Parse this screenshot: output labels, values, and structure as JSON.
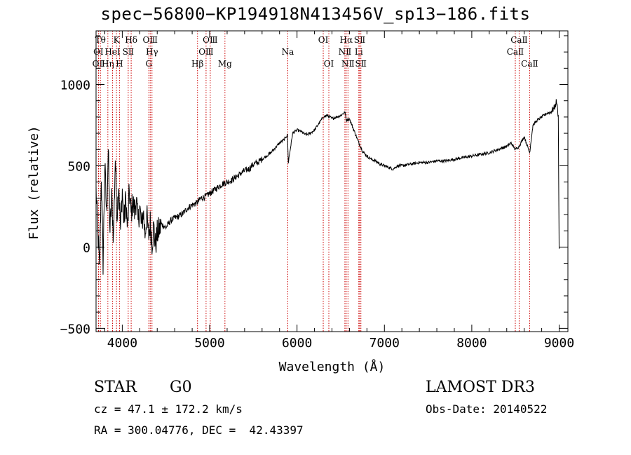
{
  "chart_data": {
    "type": "line",
    "title": "spec−56800−KP194918N413456V_sp13−186.fits",
    "xlabel": "Wavelength (Å)",
    "ylabel": "Flux (relative)",
    "xlim": [
      3700,
      9100
    ],
    "ylim": [
      -520,
      1330
    ],
    "xticks": [
      4000,
      5000,
      6000,
      7000,
      8000,
      9000
    ],
    "yticks": [
      -500,
      0,
      500,
      1000
    ],
    "xtick_labels": [
      "4000",
      "5000",
      "6000",
      "7000",
      "8000",
      "9000"
    ],
    "ytick_labels": [
      "−500",
      "0",
      "500",
      "1000"
    ],
    "grid": false,
    "line_color": "#000000",
    "marker_color": "#cc0000",
    "series": [
      {
        "x": [
          3700,
          3720,
          3740,
          3760,
          3780,
          3800,
          3820,
          3840,
          3860,
          3880,
          3900,
          3920,
          3940,
          3960,
          3980,
          4000,
          4020,
          4040,
          4060,
          4080,
          4100,
          4120,
          4140,
          4160,
          4180,
          4200,
          4220,
          4240,
          4260,
          4280,
          4300,
          4320,
          4340,
          4360,
          4380,
          4400,
          4450,
          4500,
          4550,
          4600,
          4650,
          4700,
          4750,
          4800,
          4850,
          4900,
          4950,
          5000,
          5050,
          5100,
          5150,
          5200,
          5250,
          5300,
          5350,
          5400,
          5450,
          5500,
          5550,
          5600,
          5650,
          5700,
          5750,
          5800,
          5850,
          5890,
          5900,
          5950,
          6000,
          6050,
          6100,
          6150,
          6200,
          6250,
          6300,
          6350,
          6400,
          6450,
          6500,
          6550,
          6563,
          6600,
          6650,
          6700,
          6750,
          6800,
          6850,
          6900,
          6950,
          7000,
          7050,
          7100,
          7150,
          7200,
          7300,
          7400,
          7500,
          7600,
          7700,
          7800,
          7900,
          8000,
          8100,
          8200,
          8300,
          8400,
          8450,
          8498,
          8542,
          8600,
          8662,
          8700,
          8750,
          8800,
          8850,
          8900,
          8950,
          8970,
          8990,
          9000
        ],
        "y": [
          350,
          100,
          -150,
          450,
          -100,
          500,
          200,
          600,
          100,
          300,
          50,
          550,
          200,
          400,
          100,
          350,
          150,
          300,
          100,
          350,
          200,
          280,
          220,
          300,
          150,
          250,
          120,
          220,
          80,
          200,
          60,
          150,
          30,
          120,
          10,
          80,
          140,
          120,
          160,
          180,
          190,
          210,
          240,
          260,
          270,
          300,
          310,
          330,
          350,
          370,
          390,
          400,
          410,
          430,
          450,
          470,
          480,
          510,
          520,
          540,
          560,
          580,
          610,
          640,
          660,
          690,
          520,
          700,
          720,
          710,
          690,
          700,
          720,
          760,
          800,
          810,
          790,
          800,
          810,
          830,
          780,
          790,
          720,
          650,
          590,
          560,
          540,
          530,
          510,
          500,
          490,
          480,
          500,
          500,
          510,
          520,
          520,
          530,
          530,
          540,
          550,
          560,
          570,
          580,
          600,
          620,
          640,
          600,
          620,
          680,
          580,
          750,
          780,
          800,
          820,
          830,
          860,
          900,
          800,
          -10
        ]
      }
    ],
    "line_markers": [
      {
        "label": "OⅠ",
        "x": 3727,
        "row": 2
      },
      {
        "label": "OⅡ",
        "x": 3729,
        "row": 3
      },
      {
        "label": "Tθ",
        "x": 3750,
        "row": 1
      },
      {
        "label": "Hη",
        "x": 3835,
        "row": 3
      },
      {
        "label": "HeⅠ",
        "x": 3889,
        "row": 2
      },
      {
        "label": "K",
        "x": 3934,
        "row": 1
      },
      {
        "label": "H",
        "x": 3968,
        "row": 3
      },
      {
        "label": "SⅡ",
        "x": 4068,
        "row": 2
      },
      {
        "label": "Hδ",
        "x": 4102,
        "row": 1
      },
      {
        "label": "G",
        "x": 4304,
        "row": 3
      },
      {
        "label": "OⅢ",
        "x": 4320,
        "row": 1
      },
      {
        "label": "Hγ",
        "x": 4340,
        "row": 2
      },
      {
        "label": "Hβ",
        "x": 4861,
        "row": 3
      },
      {
        "label": "OⅢ",
        "x": 4959,
        "row": 2
      },
      {
        "label": "OⅢ",
        "x": 5007,
        "row": 1
      },
      {
        "label": "Mg",
        "x": 5175,
        "row": 3
      },
      {
        "label": "Na",
        "x": 5894,
        "row": 2
      },
      {
        "label": "OⅠ",
        "x": 6300,
        "row": 1
      },
      {
        "label": "OⅠ",
        "x": 6364,
        "row": 3
      },
      {
        "label": "NⅡ",
        "x": 6548,
        "row": 2
      },
      {
        "label": "Hα",
        "x": 6563,
        "row": 1
      },
      {
        "label": "NⅡ",
        "x": 6583,
        "row": 3
      },
      {
        "label": "Li",
        "x": 6707,
        "row": 2
      },
      {
        "label": "SⅡ",
        "x": 6717,
        "row": 1
      },
      {
        "label": "SⅡ",
        "x": 6731,
        "row": 3
      },
      {
        "label": "CaⅡ",
        "x": 8498,
        "row": 2
      },
      {
        "label": "CaⅡ",
        "x": 8542,
        "row": 1
      },
      {
        "label": "CaⅡ",
        "x": 8662,
        "row": 3
      }
    ]
  },
  "info": {
    "class_label": "STAR",
    "subclass": "G0",
    "survey": "LAMOST DR3",
    "cz": "cz = 47.1 ± 172.2 km/s",
    "obs_date": "Obs-Date: 20140522",
    "coords": "RA = 300.04776, DEC =  42.43397"
  }
}
